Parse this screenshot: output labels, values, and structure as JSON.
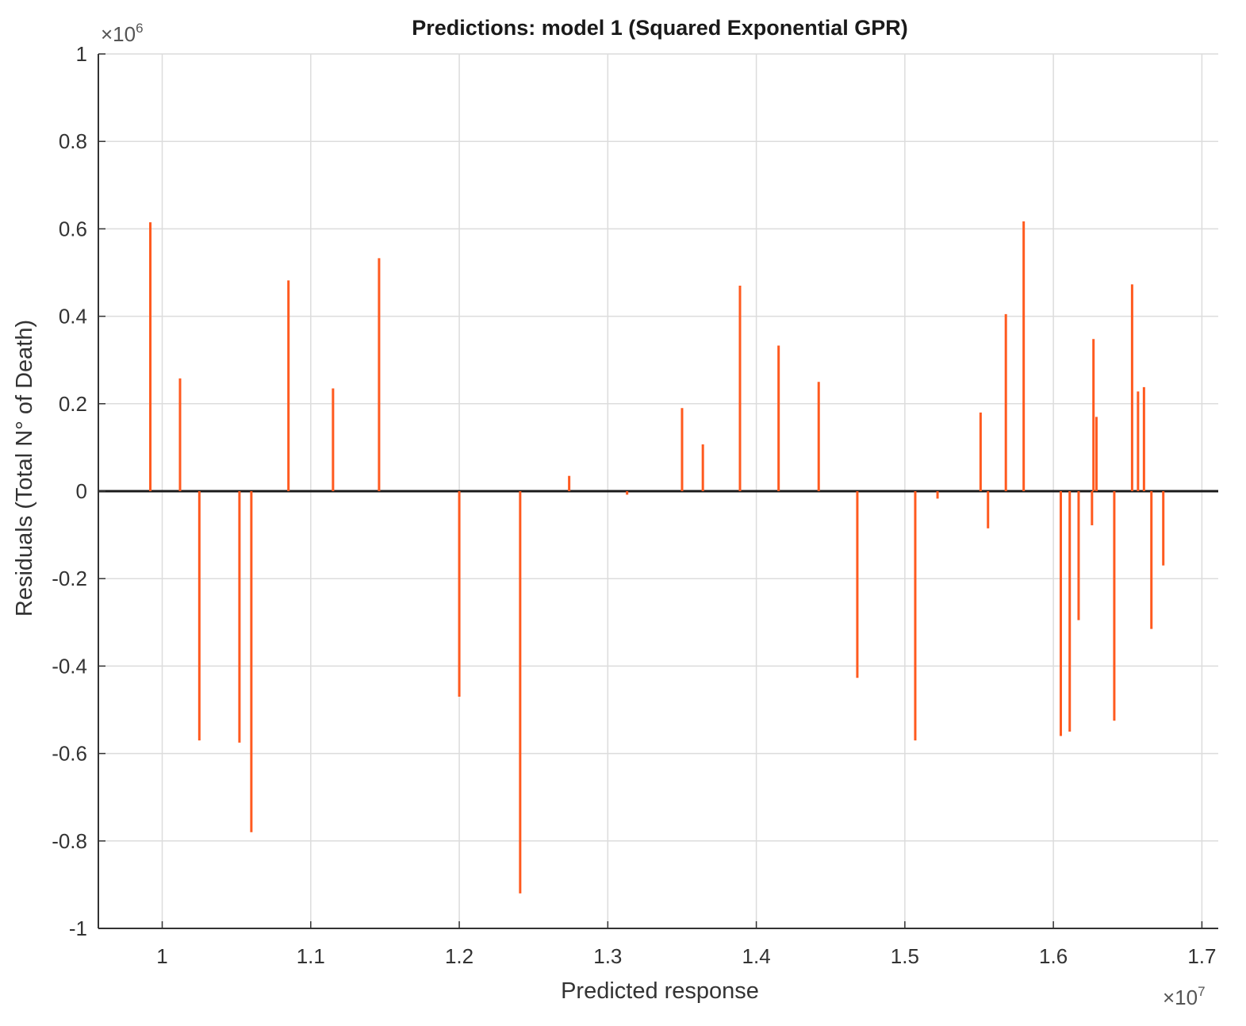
{
  "chart_data": {
    "type": "bar",
    "title": "Predictions: model 1 (Squared Exponential GPR)",
    "xlabel": "Predicted response",
    "ylabel": "Residuals (Total N° of Death)",
    "x_multiplier": {
      "base": "×10",
      "exp": "7"
    },
    "y_multiplier": {
      "base": "×10",
      "exp": "6"
    },
    "xlim": [
      0.957,
      1.711
    ],
    "ylim": [
      -1.0,
      1.0
    ],
    "x_ticks": [
      1.0,
      1.1,
      1.2,
      1.3,
      1.4,
      1.5,
      1.6,
      1.7
    ],
    "x_tick_labels": [
      "1",
      "1.1",
      "1.2",
      "1.3",
      "1.4",
      "1.5",
      "1.6",
      "1.7"
    ],
    "y_ticks": [
      -1.0,
      -0.8,
      -0.6,
      -0.4,
      -0.2,
      0.0,
      0.2,
      0.4,
      0.6,
      0.8,
      1.0
    ],
    "y_tick_labels": [
      "-1",
      "-0.8",
      "-0.6",
      "-0.4",
      "-0.2",
      "0",
      "0.2",
      "0.4",
      "0.6",
      "0.8",
      "1"
    ],
    "grid": true,
    "bar_color": "#ff5a1f",
    "zero_line_color": "#1a1a1a",
    "residuals": [
      {
        "x": 0.992,
        "y": 0.615
      },
      {
        "x": 1.012,
        "y": 0.258
      },
      {
        "x": 1.025,
        "y": -0.57
      },
      {
        "x": 1.052,
        "y": -0.575
      },
      {
        "x": 1.06,
        "y": -0.78
      },
      {
        "x": 1.085,
        "y": 0.482
      },
      {
        "x": 1.115,
        "y": 0.235
      },
      {
        "x": 1.146,
        "y": 0.533
      },
      {
        "x": 1.2,
        "y": -0.47
      },
      {
        "x": 1.241,
        "y": -0.92
      },
      {
        "x": 1.274,
        "y": 0.035
      },
      {
        "x": 1.313,
        "y": -0.008
      },
      {
        "x": 1.35,
        "y": 0.19
      },
      {
        "x": 1.364,
        "y": 0.107
      },
      {
        "x": 1.389,
        "y": 0.47
      },
      {
        "x": 1.415,
        "y": 0.333
      },
      {
        "x": 1.442,
        "y": 0.25
      },
      {
        "x": 1.468,
        "y": -0.427
      },
      {
        "x": 1.507,
        "y": -0.57
      },
      {
        "x": 1.522,
        "y": -0.017
      },
      {
        "x": 1.551,
        "y": 0.18
      },
      {
        "x": 1.556,
        "y": -0.085
      },
      {
        "x": 1.568,
        "y": 0.405
      },
      {
        "x": 1.58,
        "y": 0.617
      },
      {
        "x": 1.605,
        "y": -0.56
      },
      {
        "x": 1.611,
        "y": -0.55
      },
      {
        "x": 1.617,
        "y": -0.295
      },
      {
        "x": 1.626,
        "y": -0.078
      },
      {
        "x": 1.627,
        "y": 0.348
      },
      {
        "x": 1.629,
        "y": 0.17
      },
      {
        "x": 1.641,
        "y": -0.525
      },
      {
        "x": 1.653,
        "y": 0.473
      },
      {
        "x": 1.657,
        "y": 0.228
      },
      {
        "x": 1.661,
        "y": 0.238
      },
      {
        "x": 1.666,
        "y": -0.315
      },
      {
        "x": 1.674,
        "y": -0.17
      }
    ]
  }
}
